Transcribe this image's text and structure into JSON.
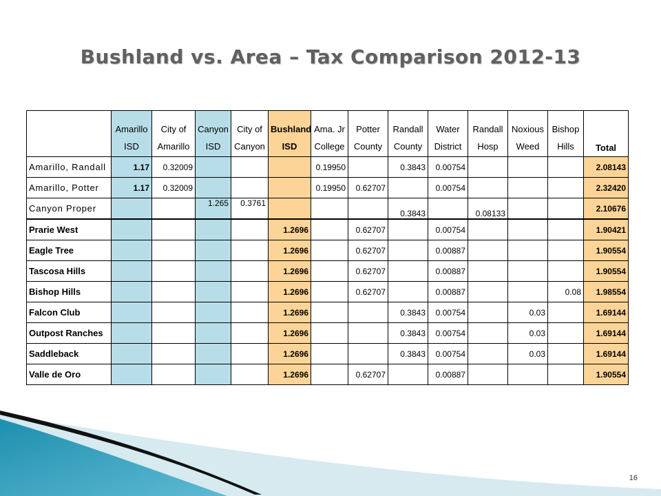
{
  "slide": {
    "title": "Bushland vs. Area – Tax Comparison 2012-13",
    "number": "16"
  },
  "table": {
    "headers": [
      {
        "l1": "",
        "l2": ""
      },
      {
        "l1": "Amarillo",
        "l2": "ISD"
      },
      {
        "l1": "City of",
        "l2": "Amarillo"
      },
      {
        "l1": "Canyon",
        "l2": "ISD"
      },
      {
        "l1": "City of",
        "l2": "Canyon"
      },
      {
        "l1": "Bushland",
        "l2": "ISD"
      },
      {
        "l1": "Ama. Jr",
        "l2": "College"
      },
      {
        "l1": "Potter",
        "l2": "County"
      },
      {
        "l1": "Randall",
        "l2": "County"
      },
      {
        "l1": "Water",
        "l2": "District"
      },
      {
        "l1": "Randall",
        "l2": "Hosp"
      },
      {
        "l1": "Noxious",
        "l2": "Weed"
      },
      {
        "l1": "Bishop",
        "l2": "Hills"
      },
      {
        "l1": "",
        "l2": "Total"
      }
    ],
    "rows": [
      {
        "name": "Amarillo, Randall",
        "c": [
          "1.17",
          "0.32009",
          "",
          "",
          "",
          "0.19950",
          "",
          "0.3843",
          "0.00754",
          "",
          "",
          "",
          "2.08143"
        ]
      },
      {
        "name": "Amarillo, Potter",
        "c": [
          "1.17",
          "0.32009",
          "",
          "",
          "",
          "0.19950",
          "0.62707",
          "",
          "0.00754",
          "",
          "",
          "",
          "2.32420"
        ]
      },
      {
        "name": "Canyon Proper",
        "c": [
          "",
          "",
          "1.265",
          "0.3761",
          "",
          "",
          "",
          "0.3843",
          "",
          "0.08133",
          "",
          "",
          "2.10676"
        ]
      },
      {
        "name": "Prarie West",
        "c": [
          "",
          "",
          "",
          "",
          "1.2696",
          "",
          "0.62707",
          "",
          "0.00754",
          "",
          "",
          "",
          "1.90421"
        ]
      },
      {
        "name": "Eagle Tree",
        "c": [
          "",
          "",
          "",
          "",
          "1.2696",
          "",
          "0.62707",
          "",
          "0.00887",
          "",
          "",
          "",
          "1.90554"
        ]
      },
      {
        "name": "Tascosa Hills",
        "c": [
          "",
          "",
          "",
          "",
          "1.2696",
          "",
          "0.62707",
          "",
          "0.00887",
          "",
          "",
          "",
          "1.90554"
        ]
      },
      {
        "name": "Bishop Hills",
        "c": [
          "",
          "",
          "",
          "",
          "1.2696",
          "",
          "0.62707",
          "",
          "0.00887",
          "",
          "",
          "0.08",
          "1.98554"
        ]
      },
      {
        "name": "Falcon Club",
        "c": [
          "",
          "",
          "",
          "",
          "1.2696",
          "",
          "",
          "0.3843",
          "0.00754",
          "",
          "0.03",
          "",
          "1.69144"
        ]
      },
      {
        "name": "Outpost Ranches",
        "c": [
          "",
          "",
          "",
          "",
          "1.2696",
          "",
          "",
          "0.3843",
          "0.00754",
          "",
          "0.03",
          "",
          "1.69144"
        ]
      },
      {
        "name": "Saddleback",
        "c": [
          "",
          "",
          "",
          "",
          "1.2696",
          "",
          "",
          "0.3843",
          "0.00754",
          "",
          "0.03",
          "",
          "1.69144"
        ]
      },
      {
        "name": "Valle de Oro",
        "c": [
          "",
          "",
          "",
          "",
          "1.2696",
          "",
          "0.62707",
          "",
          "0.00887",
          "",
          "",
          "",
          "1.90554"
        ]
      }
    ]
  },
  "colors": {
    "canyon_highlight": "#b7dde8",
    "bushland_highlight": "#fcd497",
    "deco_teal": "#1e8fae"
  }
}
